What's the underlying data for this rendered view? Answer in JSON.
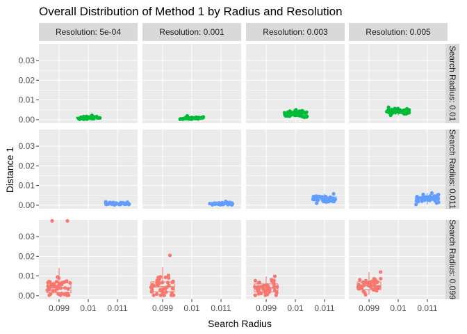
{
  "chart_data": {
    "type": "scatter",
    "title": "Overall Distribution of Method 1 by Radius and Resolution",
    "xlabel": "Search Radius",
    "ylabel": "Distance 1",
    "x_categories": [
      "0.099",
      "0.01",
      "0.011"
    ],
    "y_ticks": [
      "0.00",
      "0.01",
      "0.02",
      "0.03"
    ],
    "ylim": [
      -0.0018,
      0.0385
    ],
    "column_facets": [
      "Resolution: 5e-04",
      "Resolution: 0.001",
      "Resolution: 0.003",
      "Resolution: 0.005"
    ],
    "row_facets": [
      "Search Radius: 0.01",
      "Search Radius: 0.011",
      "Search Radius: 0.099"
    ],
    "colors": {
      "0.099": "#F8766D",
      "0.01": "#00BA38",
      "0.011": "#619CFF",
      "panel_bg": "#EBEBEB",
      "grid": "#FFFFFF",
      "strip_bg": "#D9D9D9"
    },
    "grid": true,
    "legend": "none",
    "panels": [
      {
        "row": 0,
        "col": 0,
        "category": "0.01",
        "median": 0.0009,
        "q1": 0.0006,
        "q3": 0.0013,
        "min": 0.0002,
        "max": 0.0022
      },
      {
        "row": 0,
        "col": 1,
        "category": "0.01",
        "median": 0.0008,
        "q1": 0.0005,
        "q3": 0.0011,
        "min": 0.0002,
        "max": 0.0019
      },
      {
        "row": 0,
        "col": 2,
        "category": "0.01",
        "median": 0.003,
        "q1": 0.0022,
        "q3": 0.0036,
        "min": 0.0012,
        "max": 0.005
      },
      {
        "row": 0,
        "col": 3,
        "category": "0.01",
        "median": 0.0043,
        "q1": 0.0036,
        "q3": 0.005,
        "min": 0.0022,
        "max": 0.0063
      },
      {
        "row": 1,
        "col": 0,
        "category": "0.011",
        "median": 0.0008,
        "q1": 0.0005,
        "q3": 0.0011,
        "min": 0.0002,
        "max": 0.0017
      },
      {
        "row": 1,
        "col": 1,
        "category": "0.011",
        "median": 0.0008,
        "q1": 0.0005,
        "q3": 0.0011,
        "min": 0.0002,
        "max": 0.0019
      },
      {
        "row": 1,
        "col": 2,
        "category": "0.011",
        "median": 0.0034,
        "q1": 0.0026,
        "q3": 0.0042,
        "min": 0.001,
        "max": 0.0058
      },
      {
        "row": 1,
        "col": 3,
        "category": "0.011",
        "median": 0.0034,
        "q1": 0.0024,
        "q3": 0.0043,
        "min": 0.0004,
        "max": 0.0062
      },
      {
        "row": 2,
        "col": 0,
        "category": "0.099",
        "median": 0.004,
        "q1": 0.0015,
        "q3": 0.0065,
        "min": 0.0002,
        "max": 0.038
      },
      {
        "row": 2,
        "col": 1,
        "category": "0.099",
        "median": 0.0045,
        "q1": 0.002,
        "q3": 0.007,
        "min": 0.0002,
        "max": 0.0205
      },
      {
        "row": 2,
        "col": 2,
        "category": "0.099",
        "median": 0.004,
        "q1": 0.002,
        "q3": 0.006,
        "min": 0.0002,
        "max": 0.0098
      },
      {
        "row": 2,
        "col": 3,
        "category": "0.099",
        "median": 0.005,
        "q1": 0.003,
        "q3": 0.007,
        "min": 0.0005,
        "max": 0.012
      }
    ]
  }
}
